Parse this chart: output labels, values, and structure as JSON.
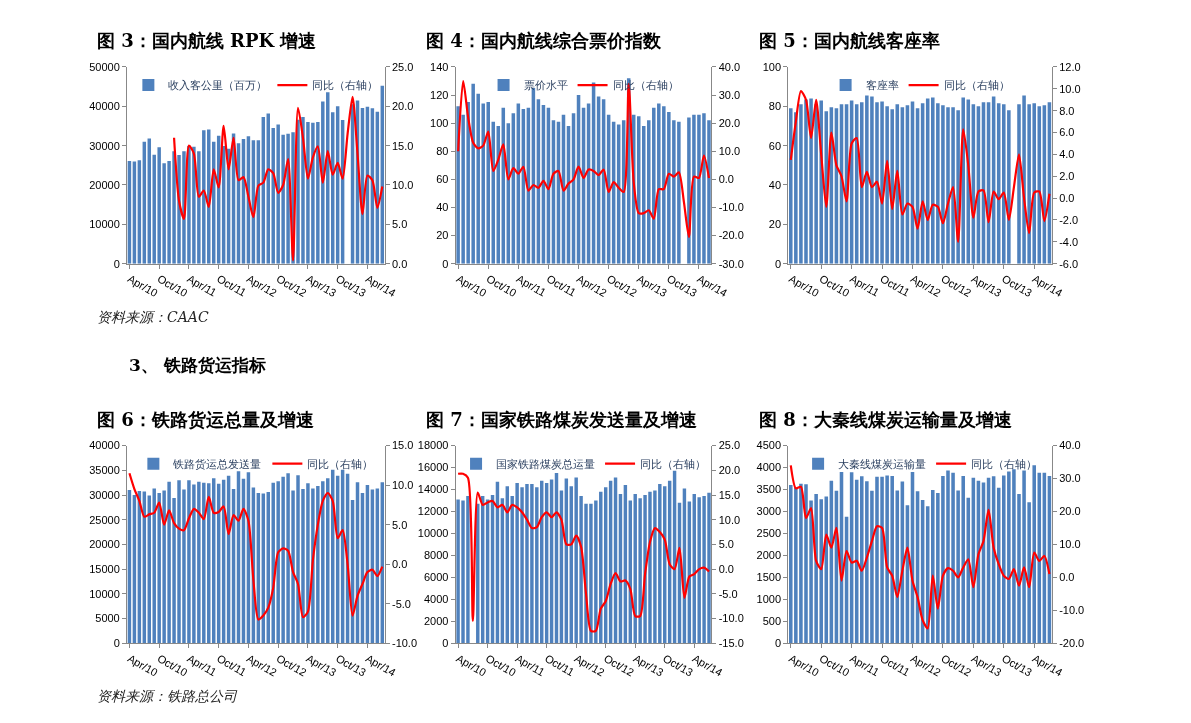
{
  "chart_data": [
    {
      "type": "bar",
      "title": "图 3：国内航线 RPK 增速",
      "annotations": [
        "资料来源：CAAC",
        "3、 铁路货运指标"
      ],
      "legend": "top",
      "marker": "none",
      "categories": [
        "Apr/10",
        null,
        null,
        null,
        null,
        null,
        "Oct/10",
        null,
        null,
        null,
        null,
        null,
        "Apr/11",
        null,
        null,
        null,
        null,
        null,
        "Oct/11",
        null,
        null,
        null,
        null,
        null,
        "Apr/12",
        null,
        null,
        null,
        null,
        null,
        "Oct/12",
        null,
        null,
        null,
        null,
        null,
        "Apr/13",
        null,
        null,
        null,
        null,
        null,
        "Oct/13",
        null,
        null,
        null,
        null,
        null,
        "Apr/14",
        null,
        null,
        null
      ],
      "ylim": [
        0,
        50000
      ],
      "yticks": [
        0,
        10000,
        20000,
        30000,
        40000,
        50000
      ],
      "y2lim": [
        0,
        25
      ],
      "y2ticks": [
        {
          "value": 0,
          "label": "0.0"
        },
        {
          "value": 5,
          "label": "5.0"
        },
        {
          "value": 10,
          "label": "10.0"
        },
        {
          "value": 15,
          "label": "15.0"
        },
        {
          "value": 20,
          "label": "20.0"
        },
        {
          "value": 25,
          "label": "25.0"
        }
      ],
      "series": [
        {
          "name": "收入客公里（百万）",
          "color": "#4f81bd",
          "values": [
            26100,
            26000,
            26300,
            31000,
            31800,
            27700,
            29600,
            25500,
            26100,
            28600,
            27600,
            28600,
            29900,
            29700,
            28600,
            33900,
            34100,
            31000,
            32500,
            29900,
            29200,
            33100,
            30600,
            31700,
            32400,
            31400,
            31400,
            37300,
            38200,
            34500,
            35400,
            32800,
            33000,
            33400,
            36600,
            37300,
            36000,
            35800,
            36000,
            41200,
            43600,
            38500,
            40000,
            36500,
            null,
            40500,
            41500,
            39600,
            39900,
            39500,
            38600,
            45200
          ]
        },
        {
          "name": "同比（右轴）",
          "type": "line",
          "axis": "y2",
          "color": "#ff0000",
          "values": [
            null,
            null,
            null,
            null,
            null,
            null,
            null,
            null,
            null,
            16,
            8,
            5.7,
            15,
            14,
            8.5,
            9.3,
            7.2,
            12,
            9.7,
            17.5,
            12,
            16,
            10.6,
            11,
            8.5,
            5.9,
            9.9,
            10.3,
            12,
            11.5,
            9,
            10,
            13.3,
            0.4,
            19.8,
            16,
            10.8,
            13.5,
            14.9,
            10.3,
            14.3,
            11.3,
            12.8,
            10.8,
            16.5,
            21.2,
            14,
            6.3,
            11.2,
            10.6,
            7.1,
            9.8
          ]
        }
      ]
    },
    {
      "type": "bar",
      "title": "图 4：国内航线综合票价指数",
      "legend": "top",
      "marker": "none",
      "categories": [
        "Apr/10",
        null,
        null,
        null,
        null,
        null,
        "Oct/10",
        null,
        null,
        null,
        null,
        null,
        "Apr/11",
        null,
        null,
        null,
        null,
        null,
        "Oct/11",
        null,
        null,
        null,
        null,
        null,
        "Apr/12",
        null,
        null,
        null,
        null,
        null,
        "Oct/12",
        null,
        null,
        null,
        null,
        null,
        "Apr/13",
        null,
        null,
        null,
        null,
        null,
        "Oct/13",
        null,
        null,
        null,
        null,
        null,
        "Apr/14",
        null,
        null
      ],
      "ylim": [
        0,
        140
      ],
      "yticks": [
        0,
        20,
        40,
        60,
        80,
        100,
        120,
        140
      ],
      "y2lim": [
        -30,
        40
      ],
      "y2ticks": [
        {
          "value": -30,
          "label": "-30.0"
        },
        {
          "value": -20,
          "label": "-20.0"
        },
        {
          "value": -10,
          "label": "-10.0"
        },
        {
          "value": 0,
          "label": "0.0"
        },
        {
          "value": 10,
          "label": "10.0"
        },
        {
          "value": 20,
          "label": "20.0"
        },
        {
          "value": 30,
          "label": "30.0"
        },
        {
          "value": 40,
          "label": "40.0"
        }
      ],
      "series": [
        {
          "name": "票价水平",
          "color": "#4f81bd",
          "values": [
            112,
            106,
            115,
            128,
            121,
            114,
            115,
            101,
            98,
            111,
            100,
            107,
            114,
            110,
            111,
            125,
            117,
            113,
            111,
            102,
            101,
            106,
            98,
            107,
            120,
            111,
            114,
            129,
            119,
            117,
            106,
            101,
            99,
            102,
            132,
            106,
            105,
            98,
            102,
            111,
            114,
            112,
            108,
            102,
            101,
            null,
            104,
            106,
            106,
            107,
            102
          ]
        },
        {
          "name": "同比（右轴）",
          "type": "line",
          "axis": "y2",
          "color": "#ff0000",
          "values": [
            10,
            35,
            22,
            13,
            11,
            12,
            17,
            3,
            7,
            12.5,
            0,
            4,
            2,
            4.5,
            -4,
            -2,
            -3,
            -0.5,
            -3.5,
            2,
            3,
            -4,
            -1.5,
            0,
            4.5,
            0.5,
            3.5,
            3,
            1.5,
            3.5,
            -4.5,
            -1,
            -3,
            -4.5,
            34,
            -1,
            -12,
            -12,
            -11,
            -14,
            -3.5,
            -3.5,
            2,
            1,
            2.5,
            -8,
            -20.5,
            1,
            0.5,
            8.5,
            0.5
          ]
        }
      ]
    },
    {
      "type": "bar",
      "title": "图 5：国内航线客座率",
      "legend": "top",
      "marker": "none",
      "categories": [
        "Apr/10",
        null,
        null,
        null,
        null,
        null,
        "Oct/10",
        null,
        null,
        null,
        null,
        null,
        "Apr/11",
        null,
        null,
        null,
        null,
        null,
        "Oct/11",
        null,
        null,
        null,
        null,
        null,
        "Apr/12",
        null,
        null,
        null,
        null,
        null,
        "Oct/12",
        null,
        null,
        null,
        null,
        null,
        "Apr/13",
        null,
        null,
        null,
        null,
        null,
        "Oct/13",
        null,
        null,
        null,
        null,
        null,
        "Apr/14",
        null,
        null,
        null
      ],
      "ylim": [
        0,
        100
      ],
      "yticks": [
        0,
        20,
        40,
        60,
        80,
        100
      ],
      "y2lim": [
        -6,
        12
      ],
      "y2ticks": [
        {
          "value": -6,
          "label": "-6.0"
        },
        {
          "value": -4,
          "label": "-4.0"
        },
        {
          "value": -2,
          "label": "-2.0"
        },
        {
          "value": 0,
          "label": "0.0"
        },
        {
          "value": 2,
          "label": "2.0"
        },
        {
          "value": 4,
          "label": "4.0"
        },
        {
          "value": 6,
          "label": "6.0"
        },
        {
          "value": 8,
          "label": "8.0"
        },
        {
          "value": 10,
          "label": "10.0"
        },
        {
          "value": 12,
          "label": "12.0"
        }
      ],
      "series": [
        {
          "name": "客座率",
          "color": "#4f81bd",
          "values": [
            79,
            77,
            81,
            83.5,
            84,
            81,
            83,
            77.5,
            79.5,
            79,
            81,
            81,
            83,
            81,
            82,
            85.5,
            85,
            82,
            82.5,
            80,
            78.5,
            81,
            79.5,
            80.5,
            82.5,
            79,
            81.5,
            84,
            84.5,
            81.5,
            80.5,
            79.5,
            79.5,
            78,
            84.5,
            83.5,
            81,
            80,
            82,
            82,
            85,
            81.5,
            81,
            78,
            null,
            81,
            85.5,
            81,
            81.5,
            80,
            80.5,
            82
          ]
        },
        {
          "name": "同比（右轴）",
          "type": "line",
          "axis": "y2",
          "color": "#ff0000",
          "values": [
            3.5,
            7,
            9.8,
            9,
            5.5,
            9,
            4,
            -0.8,
            6,
            3,
            2,
            -0.3,
            5,
            5.5,
            1,
            2.4,
            1,
            1.5,
            -0.5,
            3.4,
            -1,
            2.5,
            -1.5,
            -0.5,
            -0.8,
            -2.8,
            -0.3,
            -2,
            -0.6,
            -0.8,
            -2.3,
            -0.5,
            1,
            -4,
            6.3,
            3,
            -1.8,
            0.6,
            0.7,
            -2.2,
            0.6,
            -0.1,
            0.5,
            -2,
            1,
            4,
            0,
            -3.2,
            0.5,
            0.6,
            -2.1,
            0.4
          ]
        }
      ]
    },
    {
      "type": "bar",
      "title": "图 6：铁路货运总量及增速",
      "annotations": [
        "资料来源：铁路总公司"
      ],
      "legend": "top",
      "marker": "none",
      "categories": [
        "Apr/10",
        null,
        null,
        null,
        null,
        null,
        "Oct/10",
        null,
        null,
        null,
        null,
        null,
        "Apr/11",
        null,
        null,
        null,
        null,
        null,
        "Oct/11",
        null,
        null,
        null,
        null,
        null,
        "Apr/12",
        null,
        null,
        null,
        null,
        null,
        "Oct/12",
        null,
        null,
        null,
        null,
        null,
        "Apr/13",
        null,
        null,
        null,
        null,
        null,
        "Oct/13",
        null,
        null,
        null,
        null,
        null,
        "Apr/14",
        null,
        null,
        null
      ],
      "ylim": [
        0,
        40000
      ],
      "yticks": [
        0,
        5000,
        10000,
        15000,
        20000,
        25000,
        30000,
        35000,
        40000
      ],
      "y2lim": [
        -10,
        15
      ],
      "y2ticks": [
        {
          "value": -10,
          "label": "-10.0"
        },
        {
          "value": -5,
          "label": "-5.0"
        },
        {
          "value": 0,
          "label": "0.0"
        },
        {
          "value": 5,
          "label": "5.0"
        },
        {
          "value": 10,
          "label": "10.0"
        },
        {
          "value": 15,
          "label": "15.0"
        }
      ],
      "series": [
        {
          "name": "铁路货运总发送量",
          "color": "#4f81bd",
          "values": [
            31000,
            30000,
            30800,
            30700,
            29900,
            31300,
            30400,
            30900,
            32700,
            29400,
            33000,
            31100,
            33000,
            32100,
            32700,
            32500,
            32400,
            33400,
            32300,
            33100,
            33900,
            31200,
            34800,
            33300,
            34600,
            31500,
            30400,
            30300,
            30600,
            32500,
            32800,
            33700,
            34400,
            30900,
            34000,
            31200,
            32400,
            31300,
            31800,
            32800,
            33400,
            35100,
            33900,
            35100,
            34300,
            29000,
            32600,
            30400,
            32000,
            31100,
            31300,
            32600
          ]
        },
        {
          "name": "同比（右轴）",
          "type": "line",
          "axis": "y2",
          "color": "#ff0000",
          "values": [
            11.5,
            9.5,
            8,
            6,
            6.3,
            6.5,
            7.8,
            5,
            6.8,
            5.2,
            4.5,
            4.3,
            5.8,
            7,
            6.5,
            5.7,
            8.5,
            6.5,
            6.6,
            7.3,
            3.8,
            6.2,
            5.5,
            7,
            5.5,
            -2,
            -7,
            -6.5,
            -5.5,
            -3,
            1.5,
            2,
            1.7,
            -1,
            -2.5,
            -6.7,
            -6,
            0.5,
            5,
            8,
            9,
            8,
            3.3,
            4.3,
            0,
            -6.5,
            -4,
            -2.5,
            -1,
            -0.7,
            -1.5,
            -0.3
          ]
        }
      ]
    },
    {
      "type": "bar",
      "title": "图 7：国家铁路煤炭发送量及增速",
      "legend": "top",
      "marker": "none",
      "categories": [
        "Apr/10",
        null,
        null,
        null,
        null,
        null,
        "Oct/10",
        null,
        null,
        null,
        null,
        null,
        "Apr/11",
        null,
        null,
        null,
        null,
        null,
        "Oct/11",
        null,
        null,
        null,
        null,
        null,
        "Apr/12",
        null,
        null,
        null,
        null,
        null,
        "Oct/12",
        null,
        null,
        null,
        null,
        null,
        "Apr/13",
        null,
        null,
        null,
        null,
        null,
        "Oct/13",
        null,
        null,
        null,
        null,
        null,
        "Apr/14",
        null,
        null,
        null
      ],
      "ylim": [
        0,
        18000
      ],
      "yticks": [
        0,
        2000,
        4000,
        6000,
        8000,
        10000,
        12000,
        14000,
        16000,
        18000
      ],
      "y2lim": [
        -15,
        25
      ],
      "y2ticks": [
        {
          "value": -15,
          "label": "-15.0"
        },
        {
          "value": -10,
          "label": "-10.0"
        },
        {
          "value": -5,
          "label": "-5.0"
        },
        {
          "value": 0,
          "label": "0.0"
        },
        {
          "value": 5,
          "label": "5.0"
        },
        {
          "value": 10,
          "label": "10.0"
        },
        {
          "value": 15,
          "label": "15.0"
        },
        {
          "value": 20,
          "label": "20.0"
        },
        {
          "value": 25,
          "label": "25.0"
        }
      ],
      "series": [
        {
          "name": "国家铁路煤炭总运量",
          "color": "#4f81bd",
          "values": [
            13100,
            13000,
            13400,
            null,
            12700,
            13400,
            13100,
            13500,
            14700,
            13200,
            14300,
            13400,
            14600,
            14200,
            14500,
            14500,
            14200,
            14800,
            14600,
            14900,
            15500,
            13900,
            15000,
            14300,
            15100,
            13400,
            12700,
            12700,
            13000,
            13800,
            14200,
            14800,
            15100,
            13600,
            14400,
            13000,
            13600,
            13200,
            13500,
            13800,
            13900,
            14500,
            14300,
            14800,
            15700,
            12800,
            14100,
            12900,
            13600,
            13300,
            13400,
            13700
          ]
        },
        {
          "name": "同比（右轴）",
          "type": "line",
          "axis": "y2",
          "color": "#ff0000",
          "values": [
            19.3,
            19.3,
            18.5,
            -10.5,
            15.5,
            13,
            13.5,
            13.8,
            12.5,
            13,
            11.5,
            13,
            12.5,
            11.5,
            10,
            8.3,
            8.5,
            10.5,
            11.5,
            10.5,
            11.5,
            10,
            5,
            5,
            6.8,
            4.5,
            -5,
            -12.5,
            -12.5,
            -8,
            -6.5,
            -3,
            -0.8,
            -2.5,
            -2.3,
            -4,
            -9.5,
            -9.5,
            -1,
            5.5,
            8.3,
            7.5,
            6,
            1,
            0,
            4.3,
            -5.8,
            -1.5,
            -1,
            0,
            0.3,
            -0.5
          ]
        }
      ]
    },
    {
      "type": "bar",
      "title": "图 8：大秦线煤炭运输量及增速",
      "legend": "top",
      "marker": "none",
      "categories": [
        "Apr/10",
        null,
        null,
        null,
        null,
        null,
        "Oct/10",
        null,
        null,
        null,
        null,
        null,
        "Apr/11",
        null,
        null,
        null,
        null,
        null,
        "Oct/11",
        null,
        null,
        null,
        null,
        null,
        "Apr/12",
        null,
        null,
        null,
        null,
        null,
        "Oct/12",
        null,
        null,
        null,
        null,
        null,
        "Apr/13",
        null,
        null,
        null,
        null,
        null,
        "Oct/13",
        null,
        null,
        null,
        null,
        null,
        "Apr/14",
        null,
        null,
        null
      ],
      "ylim": [
        0,
        4500
      ],
      "yticks": [
        0,
        500,
        1000,
        1500,
        2000,
        2500,
        3000,
        3500,
        4000,
        4500
      ],
      "y2lim": [
        -20,
        40
      ],
      "y2ticks": [
        {
          "value": -20,
          "label": "-20.0"
        },
        {
          "value": -10,
          "label": "-10.0"
        },
        {
          "value": 0,
          "label": "0.0"
        },
        {
          "value": 10,
          "label": "10.0"
        },
        {
          "value": 20,
          "label": "20.0"
        },
        {
          "value": 30,
          "label": "30.0"
        },
        {
          "value": 40,
          "label": "40.0"
        }
      ],
      "series": [
        {
          "name": "大秦线煤炭运输量",
          "color": "#4f81bd",
          "values": [
            3600,
            3550,
            3630,
            3620,
            3250,
            3400,
            3280,
            3340,
            3700,
            3470,
            3900,
            2880,
            3890,
            3720,
            3800,
            3690,
            3470,
            3790,
            3790,
            3820,
            3810,
            3480,
            3680,
            3140,
            3900,
            3460,
            3260,
            3120,
            3490,
            3420,
            3810,
            3930,
            3880,
            3480,
            3810,
            3310,
            3770,
            3700,
            3660,
            3770,
            3800,
            3540,
            3820,
            3910,
            3960,
            3400,
            3930,
            3210,
            4050,
            3880,
            3880,
            3810
          ]
        },
        {
          "name": "同比（右轴）",
          "type": "line",
          "axis": "y2",
          "color": "#ff0000",
          "values": [
            34,
            27,
            27.5,
            18,
            21,
            5,
            2.5,
            13,
            9,
            15,
            -1,
            8,
            4.5,
            5,
            2,
            6,
            11,
            15.5,
            15,
            3,
            0.5,
            -6,
            2,
            9,
            -1,
            -6,
            -13,
            -15.5,
            0.5,
            -9.5,
            0.5,
            2.8,
            2,
            0,
            3,
            5.5,
            -3,
            7,
            11,
            20.5,
            9,
            4,
            0.5,
            -0.5,
            2.5,
            -2.5,
            3,
            -3,
            7.5,
            5,
            6.5,
            1
          ]
        }
      ]
    }
  ]
}
